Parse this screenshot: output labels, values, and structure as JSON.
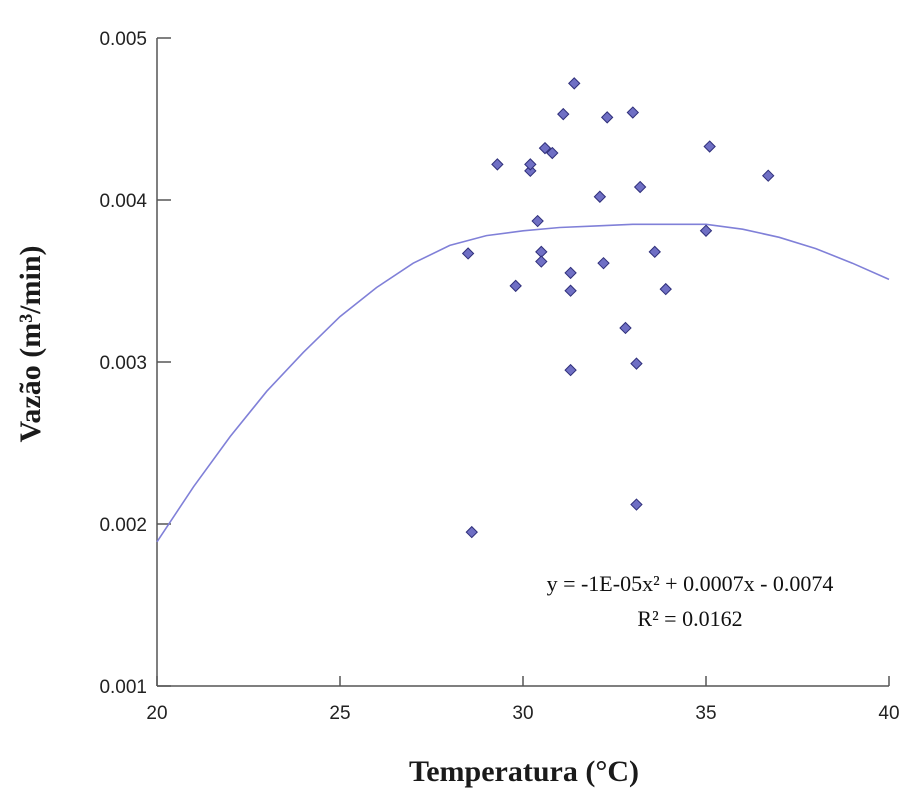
{
  "chart_data": {
    "type": "scatter",
    "xlabel": "Temperatura (°C)",
    "ylabel": "Vazão (m³/min)",
    "xlim": [
      20,
      40
    ],
    "ylim": [
      0.001,
      0.005
    ],
    "x_ticks": [
      20,
      25,
      30,
      35,
      40
    ],
    "x_tick_labels": [
      "20",
      "25",
      "30",
      "35",
      "40"
    ],
    "y_ticks": [
      0.001,
      0.002,
      0.003,
      0.004,
      0.005
    ],
    "y_tick_labels": [
      "0.001",
      "0.002",
      "0.003",
      "0.004",
      "0.005"
    ],
    "grid": false,
    "legend": false,
    "marker_color": "#6f6fc4",
    "marker_edge_color": "#2f2f7a",
    "trend_color": "#8080d8",
    "points": [
      {
        "x": 28.6,
        "y": 0.00195
      },
      {
        "x": 28.5,
        "y": 0.00367
      },
      {
        "x": 29.3,
        "y": 0.00422
      },
      {
        "x": 29.8,
        "y": 0.00347
      },
      {
        "x": 30.2,
        "y": 0.00418
      },
      {
        "x": 30.2,
        "y": 0.00422
      },
      {
        "x": 30.4,
        "y": 0.00387
      },
      {
        "x": 30.5,
        "y": 0.00368
      },
      {
        "x": 30.5,
        "y": 0.00362
      },
      {
        "x": 30.6,
        "y": 0.00432
      },
      {
        "x": 30.8,
        "y": 0.00429
      },
      {
        "x": 31.1,
        "y": 0.00453
      },
      {
        "x": 31.3,
        "y": 0.00355
      },
      {
        "x": 31.3,
        "y": 0.00344
      },
      {
        "x": 31.3,
        "y": 0.00295
      },
      {
        "x": 31.4,
        "y": 0.00472
      },
      {
        "x": 32.1,
        "y": 0.00402
      },
      {
        "x": 32.2,
        "y": 0.00361
      },
      {
        "x": 32.3,
        "y": 0.00451
      },
      {
        "x": 32.8,
        "y": 0.00321
      },
      {
        "x": 33.0,
        "y": 0.00454
      },
      {
        "x": 33.1,
        "y": 0.00299
      },
      {
        "x": 33.1,
        "y": 0.00212
      },
      {
        "x": 33.2,
        "y": 0.00408
      },
      {
        "x": 33.6,
        "y": 0.00368
      },
      {
        "x": 33.9,
        "y": 0.00345
      },
      {
        "x": 35.0,
        "y": 0.00381
      },
      {
        "x": 35.1,
        "y": 0.00433
      },
      {
        "x": 36.7,
        "y": 0.00415
      }
    ],
    "trendline": {
      "type": "polynomial",
      "x": [
        20,
        21,
        22,
        23,
        24,
        25,
        26,
        27,
        28,
        29,
        30,
        31,
        32,
        33,
        34,
        35,
        36,
        37,
        38,
        39,
        40
      ],
      "y": [
        0.00189,
        0.00223,
        0.00254,
        0.00282,
        0.00306,
        0.00328,
        0.00346,
        0.00361,
        0.00372,
        0.00378,
        0.00381,
        0.00383,
        0.00384,
        0.00385,
        0.00385,
        0.00385,
        0.00382,
        0.00377,
        0.0037,
        0.00361,
        0.00351
      ]
    },
    "annotations": {
      "equation": "y = -1E-05x² + 0.0007x - 0.0074",
      "r_squared": "R² = 0.0162"
    }
  }
}
